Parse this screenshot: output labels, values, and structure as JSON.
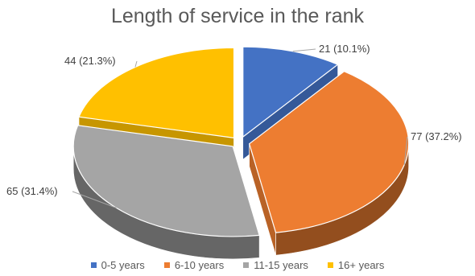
{
  "chart_data": {
    "type": "pie",
    "title": "Length of service in the rank",
    "categories": [
      "0-5 years",
      "6-10 years",
      "11-15 years",
      "16+ years"
    ],
    "values": [
      21,
      77,
      65,
      44
    ],
    "data_labels": [
      "21 (10.1%)",
      "77 (37.2%)",
      "65 (31.4%)",
      "44 (21.3%)"
    ],
    "colors": [
      "#4472c4",
      "#ed7d31",
      "#a5a5a5",
      "#ffc000"
    ],
    "exploded": true,
    "style": "3d",
    "legend_position": "bottom"
  }
}
